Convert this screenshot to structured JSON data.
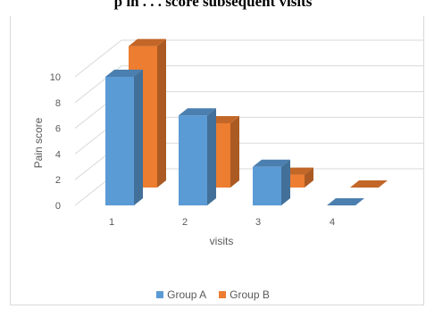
{
  "caption": "p in  . . .  score   subsequent visits",
  "chart_data": {
    "type": "bar",
    "categories": [
      "1",
      "2",
      "3",
      "4"
    ],
    "series": [
      {
        "name": "Group A",
        "values": [
          10,
          7,
          3,
          0
        ],
        "color": "#5b9bd5"
      },
      {
        "name": "Group B",
        "values": [
          11,
          5,
          1,
          0
        ],
        "color": "#ed7d31"
      }
    ],
    "xlabel": "visits",
    "ylabel": "Pain score",
    "ylim": [
      0,
      10
    ],
    "yticks": [
      "0",
      "2",
      "4",
      "6",
      "8",
      "10"
    ],
    "grid": true,
    "legend_position": "bottom",
    "three_d": true
  }
}
